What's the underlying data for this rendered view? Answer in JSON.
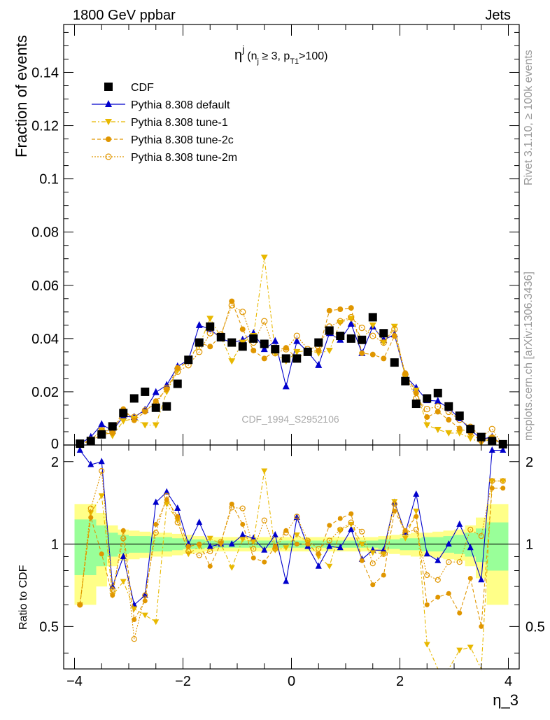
{
  "header": {
    "left": "1800 GeV ppbar",
    "right": "Jets",
    "side_top": "Rivet 3.1.10, ≥ 100k events",
    "side_bottom": "mcplots.cern.ch [arXiv:1306.3436]"
  },
  "chart_data": {
    "type": "line",
    "title_main": "η",
    "title_sup": "j",
    "title_rest": "(n",
    "title_sub1": "j",
    "title_mid": " ≥ 3, p",
    "title_sub2": "T1",
    "title_end": ">100)",
    "watermark": "CDF_1994_S2952106",
    "xlabel": "η_3",
    "ylabel": "Fraction of events",
    "ratio_ylabel": "Ratio to CDF",
    "xlim": [
      -4.2,
      4.2
    ],
    "ylim": [
      0,
      0.158
    ],
    "ratio_ylim": [
      0.35,
      2.3
    ],
    "x_ticks": [
      -4,
      -2,
      0,
      2,
      4
    ],
    "x_tick_labels": [
      "−4",
      "−2",
      "0",
      "2",
      "4"
    ],
    "y_ticks": [
      0.02,
      0.04,
      0.06,
      0.08,
      0.1,
      0.12,
      0.14
    ],
    "y_tick_labels": [
      "0.02",
      "0.04",
      "0.06",
      "0.08",
      "0.1",
      "0.12",
      "0.14"
    ],
    "y_zero_label": "0",
    "ratio_ticks": [
      0.5,
      1,
      2
    ],
    "ratio_tick_labels": [
      "0.5",
      "1",
      "2"
    ],
    "x": [
      -3.9,
      -3.7,
      -3.5,
      -3.3,
      -3.1,
      -2.9,
      -2.7,
      -2.5,
      -2.3,
      -2.1,
      -1.9,
      -1.7,
      -1.5,
      -1.3,
      -1.1,
      -0.9,
      -0.7,
      -0.5,
      -0.3,
      -0.1,
      0.1,
      0.3,
      0.5,
      0.7,
      0.9,
      1.1,
      1.3,
      1.5,
      1.7,
      1.9,
      2.1,
      2.3,
      2.5,
      2.7,
      2.9,
      3.1,
      3.3,
      3.5,
      3.7,
      3.9
    ],
    "series": [
      {
        "name": "CDF",
        "color": "#000000",
        "values": [
          0.0005,
          0.0015,
          0.004,
          0.007,
          0.012,
          0.0175,
          0.02,
          0.014,
          0.0145,
          0.023,
          0.032,
          0.0385,
          0.0445,
          0.0405,
          0.0385,
          0.037,
          0.04,
          0.038,
          0.036,
          0.0325,
          0.0325,
          0.035,
          0.0385,
          0.043,
          0.041,
          0.04,
          0.0395,
          0.048,
          0.042,
          0.031,
          0.024,
          0.0155,
          0.0175,
          0.0195,
          0.0145,
          0.011,
          0.006,
          0.003,
          0.0015,
          0.0003
        ]
      },
      {
        "name": "Pythia 8.308 default",
        "color": "#0000cc",
        "values": [
          0.0005,
          0.003,
          0.0078,
          0.0053,
          0.0108,
          0.0105,
          0.0132,
          0.0198,
          0.0225,
          0.0295,
          0.032,
          0.045,
          0.0435,
          0.04,
          0.0385,
          0.0395,
          0.042,
          0.036,
          0.039,
          0.022,
          0.039,
          0.035,
          0.03,
          0.042,
          0.0395,
          0.0455,
          0.0345,
          0.0445,
          0.0395,
          0.0415,
          0.026,
          0.0215,
          0.0168,
          0.0165,
          0.0138,
          0.01,
          0.0058,
          0.0022,
          0.003,
          0.0
        ]
      },
      {
        "name": "Pythia 8.308 tune-1",
        "color": "#e8b800",
        "values": [
          0.0003,
          0.002,
          0.0055,
          0.0035,
          0.009,
          0.01,
          0.0075,
          0.0075,
          0.02,
          0.028,
          0.032,
          0.0375,
          0.0475,
          0.0405,
          0.0315,
          0.0385,
          0.041,
          0.0705,
          0.0345,
          0.0315,
          0.035,
          0.0355,
          0.0345,
          0.0355,
          0.046,
          0.0475,
          0.0395,
          0.045,
          0.0385,
          0.0445,
          0.0255,
          0.0205,
          0.0075,
          0.0058,
          0.0045,
          0.0045,
          0.0025,
          0.0008,
          0.0025,
          0.0
        ]
      },
      {
        "name": "Pythia 8.308 tune-2c",
        "color": "#e09600",
        "values": [
          0.0003,
          0.0015,
          0.004,
          0.0045,
          0.0135,
          0.0093,
          0.0125,
          0.0165,
          0.021,
          0.029,
          0.0315,
          0.0385,
          0.037,
          0.041,
          0.054,
          0.0435,
          0.0355,
          0.0325,
          0.0355,
          0.0365,
          0.0325,
          0.035,
          0.0355,
          0.0505,
          0.051,
          0.0515,
          0.0345,
          0.034,
          0.0325,
          0.041,
          0.027,
          0.0195,
          0.0105,
          0.0125,
          0.0095,
          0.0062,
          0.0045,
          0.0015,
          0.003,
          0.0
        ]
      },
      {
        "name": "Pythia 8.308 tune-2m",
        "color": "#e09600",
        "values": [
          0.0003,
          0.002,
          0.0055,
          0.0052,
          0.012,
          0.0105,
          0.013,
          0.0155,
          0.0215,
          0.0275,
          0.03,
          0.035,
          0.042,
          0.0415,
          0.0525,
          0.05,
          0.0385,
          0.0465,
          0.0345,
          0.036,
          0.041,
          0.036,
          0.037,
          0.0445,
          0.0465,
          0.048,
          0.044,
          0.041,
          0.0385,
          0.0435,
          0.0265,
          0.0175,
          0.0135,
          0.0145,
          0.0125,
          0.0095,
          0.0068,
          0.0032,
          0.006,
          0.0
        ]
      }
    ],
    "ratio_series": [
      {
        "name": "Pythia 8.308 default",
        "values": [
          2.2,
          1.95,
          2.0,
          0.7,
          0.9,
          0.6,
          0.65,
          1.42,
          1.55,
          1.35,
          1.0,
          1.2,
          0.98,
          1.0,
          1.0,
          1.08,
          1.05,
          0.95,
          1.08,
          0.73,
          1.25,
          0.98,
          0.83,
          0.98,
          0.97,
          1.13,
          0.88,
          0.95,
          0.95,
          1.42,
          1.1,
          1.52,
          0.92,
          0.87,
          1.0,
          1.18,
          0.97,
          0.74,
          2.2,
          2.2
        ]
      },
      {
        "name": "Pythia 8.308 tune-1",
        "values": [
          0.6,
          1.3,
          1.5,
          0.65,
          0.73,
          0.58,
          0.55,
          0.52,
          1.4,
          1.22,
          0.92,
          0.98,
          1.05,
          1.0,
          0.82,
          1.04,
          1.02,
          1.85,
          0.95,
          0.97,
          1.08,
          1.02,
          0.9,
          0.83,
          1.12,
          1.18,
          1.0,
          0.93,
          0.92,
          1.43,
          1.05,
          1.32,
          0.43,
          0.3,
          0.31,
          0.41,
          0.42,
          0.27,
          1.7,
          1.7
        ]
      },
      {
        "name": "Pythia 8.308 tune-2c",
        "values": [
          0.6,
          1.25,
          0.92,
          0.65,
          1.12,
          0.53,
          0.62,
          1.18,
          1.45,
          1.26,
          0.98,
          1.0,
          0.83,
          1.01,
          1.4,
          1.18,
          0.89,
          0.86,
          0.98,
          1.12,
          1.0,
          1.0,
          0.92,
          1.17,
          1.24,
          1.29,
          0.87,
          0.71,
          0.77,
          1.32,
          1.12,
          1.26,
          0.6,
          0.64,
          0.66,
          0.56,
          0.75,
          0.5,
          1.6,
          1.6
        ]
      },
      {
        "name": "Pythia 8.308 tune-2m",
        "values": [
          0.6,
          1.35,
          1.85,
          0.68,
          1.05,
          0.45,
          0.65,
          1.1,
          1.5,
          1.2,
          0.94,
          0.91,
          0.94,
          1.02,
          1.36,
          1.35,
          0.96,
          1.22,
          0.96,
          1.1,
          1.26,
          1.03,
          0.96,
          1.03,
          1.13,
          1.2,
          1.11,
          0.85,
          0.92,
          1.4,
          1.1,
          1.13,
          0.77,
          0.74,
          0.86,
          0.86,
          1.13,
          1.07,
          1.7,
          1.7
        ]
      }
    ],
    "ratio_band_inner": [
      0.77,
      0.77,
      0.83,
      0.9,
      0.92,
      0.93,
      0.93,
      0.94,
      0.94,
      0.95,
      0.96,
      0.96,
      0.97,
      0.97,
      0.97,
      0.97,
      0.97,
      0.97,
      0.97,
      0.97,
      0.97,
      0.97,
      0.97,
      0.97,
      0.97,
      0.97,
      0.97,
      0.97,
      0.96,
      0.96,
      0.95,
      0.95,
      0.94,
      0.94,
      0.93,
      0.92,
      0.9,
      0.86,
      0.8,
      0.8
    ],
    "ratio_band_outer": [
      0.6,
      0.6,
      0.7,
      0.83,
      0.87,
      0.88,
      0.89,
      0.9,
      0.9,
      0.91,
      0.92,
      0.93,
      0.94,
      0.94,
      0.94,
      0.94,
      0.94,
      0.94,
      0.94,
      0.94,
      0.94,
      0.94,
      0.94,
      0.94,
      0.94,
      0.94,
      0.94,
      0.94,
      0.93,
      0.92,
      0.91,
      0.9,
      0.9,
      0.89,
      0.88,
      0.87,
      0.83,
      0.75,
      0.6,
      0.6
    ],
    "legend": [
      {
        "label": "CDF",
        "marker": "square",
        "color": "#000000",
        "dash": ""
      },
      {
        "label": "Pythia 8.308 default",
        "marker": "triangle-up",
        "color": "#0000cc",
        "dash": ""
      },
      {
        "label": "Pythia 8.308 tune-1",
        "marker": "triangle-down",
        "color": "#e8b800",
        "dash": "6,3,2,3"
      },
      {
        "label": "Pythia 8.308 tune-2c",
        "marker": "circle",
        "color": "#e09600",
        "dash": "5,3"
      },
      {
        "label": "Pythia 8.308 tune-2m",
        "marker": "circle-open",
        "color": "#e09600",
        "dash": "2,2"
      }
    ]
  }
}
